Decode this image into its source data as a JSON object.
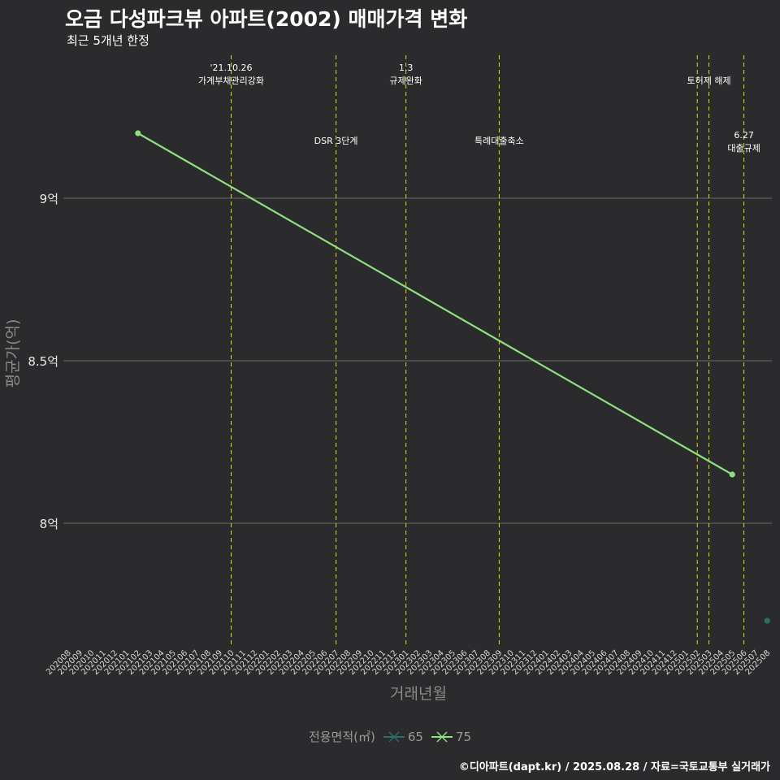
{
  "title": "오금 다성파크뷰 아파트(2002) 매매가격 변화",
  "subtitle": "최근 5개년 한정",
  "caption": "©디아파트(dapt.kr) / 2025.08.28 / 자료=국토교통부 실거래가",
  "colors": {
    "background": "#2b2b2d",
    "grid": "#5e5e5e",
    "event_line": "#e0e000",
    "series_65": "#2a6f6a",
    "series_75": "#8fe07f"
  },
  "chart_data": {
    "type": "line",
    "xlabel": "거래년월",
    "ylabel": "평균가(억)",
    "x_categories": [
      "202008",
      "202009",
      "202010",
      "202011",
      "202012",
      "202101",
      "202102",
      "202103",
      "202104",
      "202105",
      "202106",
      "202107",
      "202108",
      "202109",
      "202110",
      "202111",
      "202112",
      "202201",
      "202202",
      "202203",
      "202204",
      "202205",
      "202206",
      "202207",
      "202208",
      "202209",
      "202210",
      "202211",
      "202212",
      "202301",
      "202302",
      "202303",
      "202304",
      "202305",
      "202306",
      "202307",
      "202308",
      "202309",
      "202310",
      "202311",
      "202312",
      "202401",
      "202402",
      "202403",
      "202404",
      "202405",
      "202406",
      "202407",
      "202408",
      "202409",
      "202410",
      "202411",
      "202412",
      "202501",
      "202502",
      "202503",
      "202504",
      "202505",
      "202506",
      "202507",
      "202508"
    ],
    "y_ticks": [
      {
        "value": 8,
        "label": "8억"
      },
      {
        "value": 8.5,
        "label": "8.5억"
      },
      {
        "value": 9,
        "label": "9억"
      }
    ],
    "ylim": [
      7.62,
      9.44
    ],
    "series": [
      {
        "name": "65",
        "points": [
          {
            "x": "202508",
            "y": 7.7
          }
        ]
      },
      {
        "name": "75",
        "points": [
          {
            "x": "202102",
            "y": 9.2
          },
          {
            "x": "202505",
            "y": 8.15
          }
        ]
      }
    ],
    "events": [
      {
        "x": "202110",
        "lines": [
          "'21.10.26",
          "가계부채관리강화"
        ],
        "row": "top"
      },
      {
        "x": "202207",
        "lines": [
          "DSR 3단계"
        ],
        "row": "mid"
      },
      {
        "x": "202301",
        "lines": [
          "1.3",
          "규제완화"
        ],
        "row": "top"
      },
      {
        "x": "202309",
        "lines": [
          "특례대출축소"
        ],
        "row": "mid"
      },
      {
        "x": "202502",
        "lines": [],
        "row": "top"
      },
      {
        "x": "202503",
        "lines": [
          "토허제 해제"
        ],
        "row": "top"
      },
      {
        "x": "202506",
        "lines": [
          "6.27",
          "대출규제"
        ],
        "row": "mid"
      }
    ],
    "legend": {
      "title": "전용면적(㎡)",
      "entries": [
        "65",
        "75"
      ]
    }
  }
}
